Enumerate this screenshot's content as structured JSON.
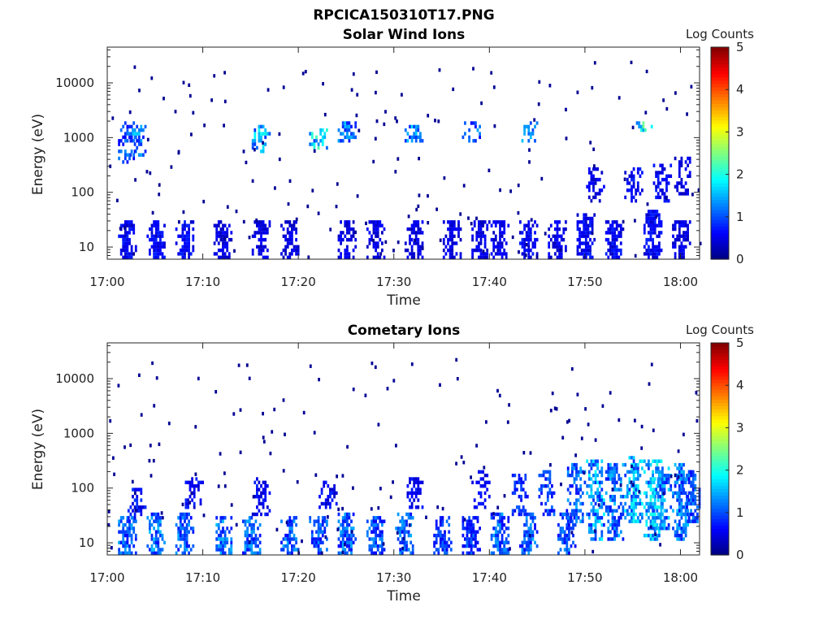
{
  "figure": {
    "title": "RPCICA150310T17.PNG"
  },
  "chart_data": [
    {
      "type": "heatmap",
      "title": "Solar Wind Ions",
      "xlabel": "Time",
      "ylabel": "Energy (eV)",
      "y_scale": "log",
      "x_ticks": [
        "17:00",
        "17:10",
        "17:20",
        "17:30",
        "17:40",
        "17:50",
        "18:00"
      ],
      "xlim": [
        "17:00",
        "18:02"
      ],
      "y_ticks": [
        10,
        100,
        1000,
        10000
      ],
      "y_tick_labels": [
        "10",
        "100",
        "1000",
        "10000"
      ],
      "ylim": [
        6,
        45000
      ],
      "colorbar": {
        "label": "Log Counts",
        "min": 0,
        "max": 5,
        "ticks": [
          "0",
          "1",
          "2",
          "3",
          "4",
          "5"
        ],
        "colormap": "jet"
      },
      "activity": [
        {
          "time": "17:02",
          "e_lo": 5.5,
          "e_hi": 28,
          "level": 0.6,
          "p": 0.9
        },
        {
          "time": "17:02",
          "e_lo": 300,
          "e_hi": 1800,
          "level": 1.0,
          "p": 0.6
        },
        {
          "time": "17:03",
          "e_lo": 400,
          "e_hi": 1700,
          "level": 1.3,
          "p": 0.6
        },
        {
          "time": "17:05",
          "e_lo": 5.5,
          "e_hi": 28,
          "level": 0.6,
          "p": 0.9
        },
        {
          "time": "17:08",
          "e_lo": 5.5,
          "e_hi": 28,
          "level": 0.6,
          "p": 0.9
        },
        {
          "time": "17:12",
          "e_lo": 5.5,
          "e_hi": 28,
          "level": 0.5,
          "p": 0.85
        },
        {
          "time": "17:16",
          "e_lo": 500,
          "e_hi": 1600,
          "level": 1.5,
          "p": 0.7
        },
        {
          "time": "17:16",
          "e_lo": 5.5,
          "e_hi": 28,
          "level": 0.5,
          "p": 0.8
        },
        {
          "time": "17:19",
          "e_lo": 5.5,
          "e_hi": 28,
          "level": 0.5,
          "p": 0.8
        },
        {
          "time": "17:22",
          "e_lo": 600,
          "e_hi": 1400,
          "level": 1.7,
          "p": 0.6
        },
        {
          "time": "17:25",
          "e_lo": 5.5,
          "e_hi": 28,
          "level": 0.5,
          "p": 0.85
        },
        {
          "time": "17:25",
          "e_lo": 700,
          "e_hi": 1800,
          "level": 1.2,
          "p": 0.6
        },
        {
          "time": "17:28",
          "e_lo": 5.5,
          "e_hi": 28,
          "level": 0.5,
          "p": 0.8
        },
        {
          "time": "17:32",
          "e_lo": 700,
          "e_hi": 1700,
          "level": 1.3,
          "p": 0.7
        },
        {
          "time": "17:32",
          "e_lo": 5.5,
          "e_hi": 28,
          "level": 0.5,
          "p": 0.8
        },
        {
          "time": "17:36",
          "e_lo": 5.5,
          "e_hi": 28,
          "level": 0.5,
          "p": 0.8
        },
        {
          "time": "17:38",
          "e_lo": 700,
          "e_hi": 1800,
          "level": 1.1,
          "p": 0.6
        },
        {
          "time": "17:39",
          "e_lo": 5.5,
          "e_hi": 28,
          "level": 0.5,
          "p": 0.85
        },
        {
          "time": "17:41",
          "e_lo": 5.5,
          "e_hi": 28,
          "level": 0.5,
          "p": 0.8
        },
        {
          "time": "17:44",
          "e_lo": 5.5,
          "e_hi": 28,
          "level": 0.6,
          "p": 0.9
        },
        {
          "time": "17:44",
          "e_lo": 700,
          "e_hi": 1800,
          "level": 1.2,
          "p": 0.6
        },
        {
          "time": "17:47",
          "e_lo": 5.5,
          "e_hi": 28,
          "level": 0.5,
          "p": 0.85
        },
        {
          "time": "17:50",
          "e_lo": 5.5,
          "e_hi": 40,
          "level": 0.6,
          "p": 0.9
        },
        {
          "time": "17:51",
          "e_lo": 60,
          "e_hi": 250,
          "level": 0.5,
          "p": 0.5
        },
        {
          "time": "17:53",
          "e_lo": 5.5,
          "e_hi": 30,
          "level": 0.6,
          "p": 0.9
        },
        {
          "time": "17:55",
          "e_lo": 60,
          "e_hi": 250,
          "level": 0.6,
          "p": 0.6
        },
        {
          "time": "17:56",
          "e_lo": 1200,
          "e_hi": 1900,
          "level": 1.8,
          "p": 0.7
        },
        {
          "time": "17:57",
          "e_lo": 5.5,
          "e_hi": 45,
          "level": 0.6,
          "p": 0.95
        },
        {
          "time": "17:58",
          "e_lo": 60,
          "e_hi": 300,
          "level": 0.6,
          "p": 0.6
        },
        {
          "time": "18:00",
          "e_lo": 5.5,
          "e_hi": 30,
          "level": 0.5,
          "p": 0.85
        },
        {
          "time": "18:00",
          "e_lo": 80,
          "e_hi": 400,
          "level": 0.5,
          "p": 0.6
        }
      ]
    },
    {
      "type": "heatmap",
      "title": "Cometary Ions",
      "xlabel": "Time",
      "ylabel": "Energy (eV)",
      "y_scale": "log",
      "x_ticks": [
        "17:00",
        "17:10",
        "17:20",
        "17:30",
        "17:40",
        "17:50",
        "18:00"
      ],
      "xlim": [
        "17:00",
        "18:02"
      ],
      "y_ticks": [
        10,
        100,
        1000,
        10000
      ],
      "y_tick_labels": [
        "10",
        "100",
        "1000",
        "10000"
      ],
      "ylim": [
        6,
        45000
      ],
      "colorbar": {
        "label": "Log Counts",
        "min": 0,
        "max": 5,
        "ticks": [
          "0",
          "1",
          "2",
          "3",
          "4",
          "5"
        ],
        "colormap": "jet"
      },
      "activity": [
        {
          "time": "17:02",
          "e_lo": 5.5,
          "e_hi": 30,
          "level": 1.1,
          "p": 0.9
        },
        {
          "time": "17:03",
          "e_lo": 25,
          "e_hi": 90,
          "level": 0.7,
          "p": 0.6
        },
        {
          "time": "17:05",
          "e_lo": 5.5,
          "e_hi": 35,
          "level": 1.2,
          "p": 0.9
        },
        {
          "time": "17:08",
          "e_lo": 5.5,
          "e_hi": 35,
          "level": 1.1,
          "p": 0.85
        },
        {
          "time": "17:09",
          "e_lo": 40,
          "e_hi": 150,
          "level": 0.6,
          "p": 0.5
        },
        {
          "time": "17:12",
          "e_lo": 5.5,
          "e_hi": 30,
          "level": 1.2,
          "p": 0.9
        },
        {
          "time": "17:15",
          "e_lo": 5.5,
          "e_hi": 30,
          "level": 1.1,
          "p": 0.85
        },
        {
          "time": "17:16",
          "e_lo": 30,
          "e_hi": 150,
          "level": 0.6,
          "p": 0.5
        },
        {
          "time": "17:19",
          "e_lo": 5.5,
          "e_hi": 30,
          "level": 1.1,
          "p": 0.85
        },
        {
          "time": "17:22",
          "e_lo": 5.5,
          "e_hi": 30,
          "level": 1.0,
          "p": 0.8
        },
        {
          "time": "17:23",
          "e_lo": 40,
          "e_hi": 120,
          "level": 0.6,
          "p": 0.5
        },
        {
          "time": "17:25",
          "e_lo": 5.5,
          "e_hi": 35,
          "level": 1.1,
          "p": 0.85
        },
        {
          "time": "17:28",
          "e_lo": 5.5,
          "e_hi": 30,
          "level": 1.0,
          "p": 0.8
        },
        {
          "time": "17:31",
          "e_lo": 5.5,
          "e_hi": 35,
          "level": 1.1,
          "p": 0.85
        },
        {
          "time": "17:32",
          "e_lo": 40,
          "e_hi": 150,
          "level": 0.6,
          "p": 0.5
        },
        {
          "time": "17:35",
          "e_lo": 5.5,
          "e_hi": 30,
          "level": 0.9,
          "p": 0.8
        },
        {
          "time": "17:38",
          "e_lo": 5.5,
          "e_hi": 30,
          "level": 0.9,
          "p": 0.8
        },
        {
          "time": "17:39",
          "e_lo": 40,
          "e_hi": 200,
          "level": 0.6,
          "p": 0.5
        },
        {
          "time": "17:41",
          "e_lo": 5.5,
          "e_hi": 35,
          "level": 1.1,
          "p": 0.85
        },
        {
          "time": "17:43",
          "e_lo": 30,
          "e_hi": 160,
          "level": 0.8,
          "p": 0.6
        },
        {
          "time": "17:44",
          "e_lo": 5.5,
          "e_hi": 35,
          "level": 1.1,
          "p": 0.85
        },
        {
          "time": "17:46",
          "e_lo": 30,
          "e_hi": 200,
          "level": 0.9,
          "p": 0.6
        },
        {
          "time": "17:48",
          "e_lo": 5.5,
          "e_hi": 40,
          "level": 1.0,
          "p": 0.8
        },
        {
          "time": "17:49",
          "e_lo": 20,
          "e_hi": 260,
          "level": 1.1,
          "p": 0.75
        },
        {
          "time": "17:51",
          "e_lo": 10,
          "e_hi": 300,
          "level": 1.4,
          "p": 0.8
        },
        {
          "time": "17:53",
          "e_lo": 10,
          "e_hi": 250,
          "level": 1.2,
          "p": 0.75
        },
        {
          "time": "17:55",
          "e_lo": 20,
          "e_hi": 350,
          "level": 1.5,
          "p": 0.8
        },
        {
          "time": "17:57",
          "e_lo": 10,
          "e_hi": 300,
          "level": 1.6,
          "p": 0.8
        },
        {
          "time": "17:58",
          "e_lo": 15,
          "e_hi": 220,
          "level": 1.3,
          "p": 0.75
        },
        {
          "time": "18:00",
          "e_lo": 10,
          "e_hi": 250,
          "level": 1.2,
          "p": 0.75
        },
        {
          "time": "18:01",
          "e_lo": 20,
          "e_hi": 200,
          "level": 1.0,
          "p": 0.7
        }
      ]
    }
  ]
}
